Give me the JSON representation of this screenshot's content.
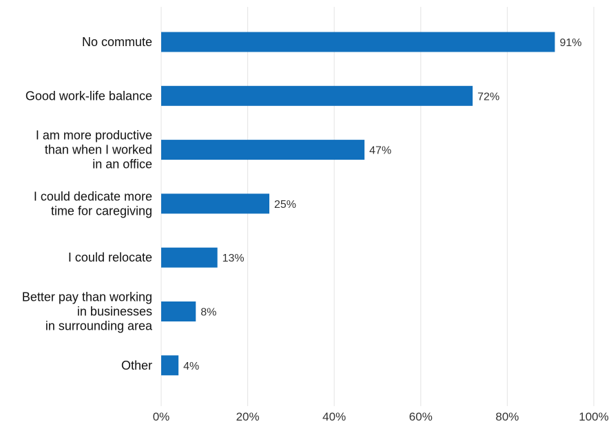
{
  "chart_data": {
    "type": "bar",
    "orientation": "horizontal",
    "title": "",
    "xlabel": "",
    "ylabel": "",
    "categories": [
      "No commute",
      "Good work-life balance",
      "I am more productive than when I worked in an office",
      "I could dedicate more time for caregiving",
      "I could relocate",
      "Better pay than working in businesses in surrounding area",
      "Other"
    ],
    "category_lines": [
      [
        "No commute"
      ],
      [
        "Good work-life balance"
      ],
      [
        "I am more productive",
        "than when I worked",
        "in an office"
      ],
      [
        "I could dedicate more",
        "time for caregiving"
      ],
      [
        "I could relocate"
      ],
      [
        "Better pay than working",
        "in businesses",
        "in surrounding area"
      ],
      [
        "Other"
      ]
    ],
    "values": [
      91,
      72,
      47,
      25,
      13,
      8,
      4
    ],
    "value_labels": [
      "91%",
      "72%",
      "47%",
      "25%",
      "13%",
      "8%",
      "4%"
    ],
    "xlim": [
      0,
      100
    ],
    "xticks": [
      0,
      20,
      40,
      60,
      80,
      100
    ],
    "xtick_labels": [
      "0%",
      "20%",
      "40%",
      "60%",
      "80%",
      "100%"
    ],
    "grid": true,
    "legend": "none",
    "bar_color": "#1170bd",
    "grid_color": "#e3e3e3"
  }
}
